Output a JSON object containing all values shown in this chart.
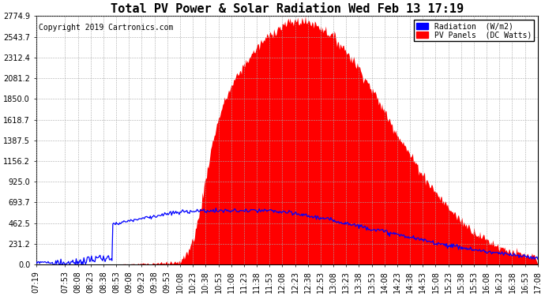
{
  "title": "Total PV Power & Solar Radiation Wed Feb 13 17:19",
  "copyright": "Copyright 2019 Cartronics.com",
  "legend_radiation": "Radiation  (W/m2)",
  "legend_pv": "PV Panels  (DC Watts)",
  "bg_color": "#ffffff",
  "plot_bg_color": "#ffffff",
  "grid_color": "#aaaaaa",
  "radiation_color": "#0000ff",
  "pv_color": "#ff0000",
  "ylim": [
    0,
    2774.9
  ],
  "yticks": [
    0.0,
    231.2,
    462.5,
    693.7,
    925.0,
    1156.2,
    1387.5,
    1618.7,
    1850.0,
    2081.2,
    2312.4,
    2543.7,
    2774.9
  ],
  "title_fontsize": 11,
  "copyright_fontsize": 7,
  "axis_fontsize": 7
}
